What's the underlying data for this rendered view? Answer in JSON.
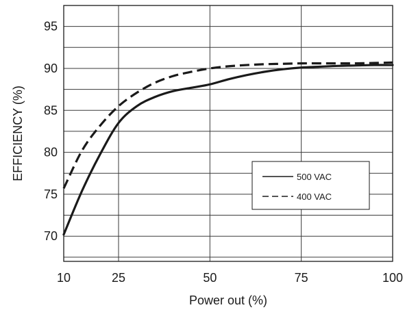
{
  "chart_data": {
    "type": "line",
    "title": "",
    "xlabel": "Power out (%)",
    "ylabel": "EFFICIENCY (%)",
    "xlim": [
      10,
      100
    ],
    "ylim": [
      67,
      97.5
    ],
    "x_ticks": [
      10,
      25,
      50,
      75,
      100
    ],
    "x_tick_labels": [
      "10",
      "25",
      "50",
      "75",
      "100"
    ],
    "x_grid": [
      10,
      25,
      50,
      75,
      100
    ],
    "y_ticks": [
      70,
      75,
      80,
      85,
      90,
      95
    ],
    "y_tick_labels": [
      "70",
      "75",
      "80",
      "85",
      "90",
      "95"
    ],
    "y_grid": [
      67.5,
      70,
      72.5,
      75,
      77.5,
      80,
      82.5,
      85,
      87.5,
      90,
      92.5,
      95,
      97.5
    ],
    "grid": true,
    "legend_position": "right",
    "series": [
      {
        "name": "500 VAC",
        "line_style": "solid",
        "color": "#1a1a1a",
        "x": [
          10,
          15,
          20,
          25,
          30,
          35,
          40,
          45,
          50,
          55,
          60,
          65,
          70,
          75,
          80,
          85,
          90,
          95,
          100
        ],
        "y": [
          70.2,
          75.4,
          79.8,
          83.5,
          85.5,
          86.6,
          87.3,
          87.7,
          88.1,
          88.7,
          89.2,
          89.6,
          89.9,
          90.1,
          90.2,
          90.3,
          90.35,
          90.4,
          90.4
        ]
      },
      {
        "name": "400 VAC",
        "line_style": "dashed",
        "color": "#1a1a1a",
        "x": [
          10,
          15,
          20,
          25,
          30,
          35,
          40,
          45,
          50,
          55,
          60,
          65,
          70,
          75,
          80,
          85,
          90,
          95,
          100
        ],
        "y": [
          75.7,
          80.2,
          83.2,
          85.5,
          87.1,
          88.3,
          89.1,
          89.6,
          90.0,
          90.25,
          90.4,
          90.5,
          90.55,
          90.6,
          90.6,
          90.6,
          90.6,
          90.65,
          90.7
        ]
      }
    ]
  }
}
